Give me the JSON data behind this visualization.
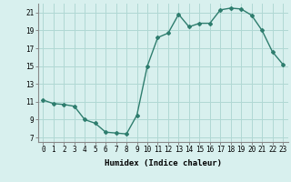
{
  "xlabel": "Humidex (Indice chaleur)",
  "ylabel": "",
  "x": [
    0,
    1,
    2,
    3,
    4,
    5,
    6,
    7,
    8,
    9,
    10,
    11,
    12,
    13,
    14,
    15,
    16,
    17,
    18,
    19,
    20,
    21,
    22,
    23
  ],
  "y": [
    11.2,
    10.8,
    10.7,
    10.5,
    9.0,
    8.6,
    7.6,
    7.5,
    7.4,
    9.5,
    15.0,
    18.2,
    18.7,
    20.8,
    19.4,
    19.8,
    19.8,
    21.3,
    21.5,
    21.4,
    20.7,
    19.0,
    16.6,
    15.2
  ],
  "line_color": "#2e7d6e",
  "marker": "D",
  "marker_size": 2.0,
  "line_width": 1.0,
  "bg_color": "#d8f0ee",
  "grid_color": "#b0d8d4",
  "ylim": [
    6.5,
    22.0
  ],
  "xlim": [
    -0.5,
    23.5
  ],
  "yticks": [
    7,
    9,
    11,
    13,
    15,
    17,
    19,
    21
  ],
  "xticks": [
    0,
    1,
    2,
    3,
    4,
    5,
    6,
    7,
    8,
    9,
    10,
    11,
    12,
    13,
    14,
    15,
    16,
    17,
    18,
    19,
    20,
    21,
    22,
    23
  ],
  "label_fontsize": 6.5,
  "tick_fontsize": 5.5
}
